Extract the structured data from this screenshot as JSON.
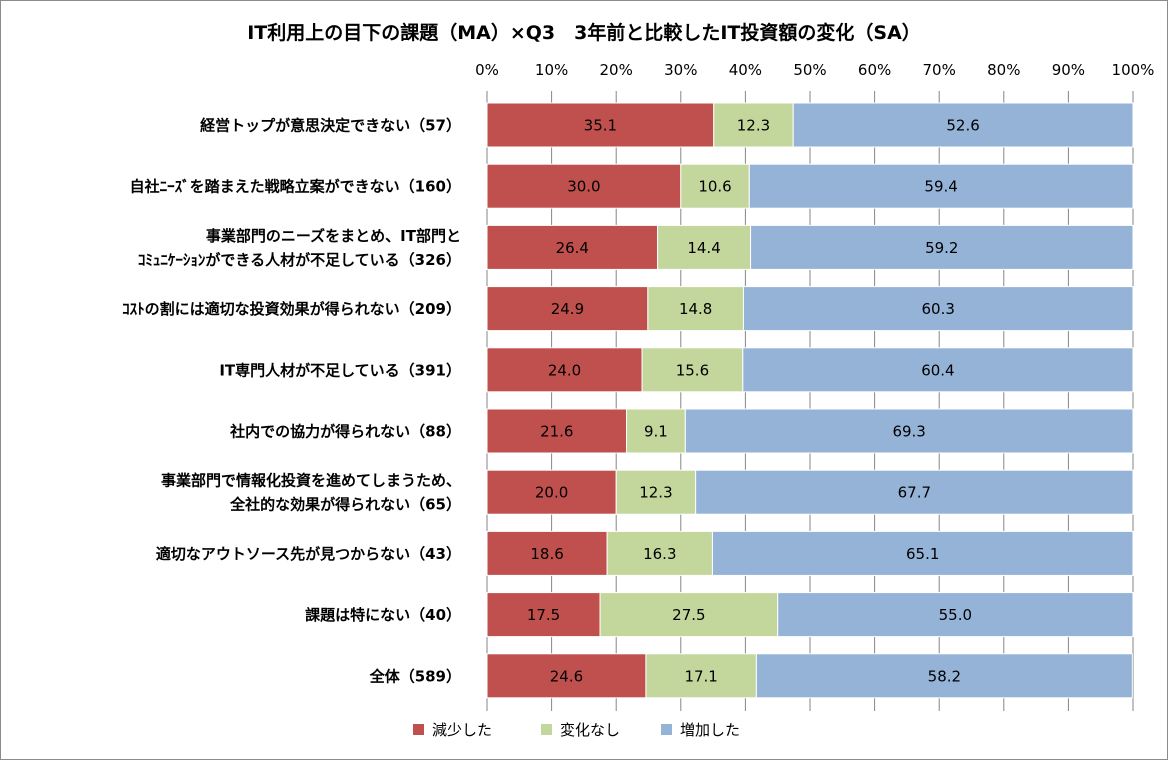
{
  "chart_data": {
    "type": "bar",
    "orientation": "horizontal",
    "stacked": true,
    "percent_stacked": true,
    "title": "IT利用上の目下の課題（MA）×Q3　3年前と比較したIT投資額の変化（SA）",
    "xlim": [
      0,
      100
    ],
    "x_ticks": [
      "0%",
      "10%",
      "20%",
      "30%",
      "40%",
      "50%",
      "60%",
      "70%",
      "80%",
      "90%",
      "100%"
    ],
    "x_axis_position": "top",
    "grid": true,
    "legend_position": "bottom",
    "categories": [
      [
        "経営トップが意思決定できない（57）"
      ],
      [
        "自社ﾆｰｽﾞを踏まえた戦略立案ができない（160）"
      ],
      [
        "事業部門のニーズをまとめ、IT部門と",
        "ｺﾐｭﾆｹｰｼｮﾝができる人材が不足している（326）"
      ],
      [
        "ｺｽﾄの割には適切な投資効果が得られない（209）"
      ],
      [
        "IT専門人材が不足している（391）"
      ],
      [
        "社内での協力が得られない（88）"
      ],
      [
        "事業部門で情報化投資を進めてしまうため、",
        "全社的な効果が得られない（65）"
      ],
      [
        "適切なアウトソース先が見つからない（43）"
      ],
      [
        "課題は特にない（40）"
      ],
      [
        "全体（589）"
      ]
    ],
    "series": [
      {
        "name": "減少した",
        "color": "#c0504d",
        "values": [
          35.1,
          30.0,
          26.4,
          24.9,
          24.0,
          21.6,
          20.0,
          18.6,
          17.5,
          24.6
        ],
        "labels": [
          "35.1",
          "30.0",
          "26.4",
          "24.9",
          "24.0",
          "21.6",
          "20.0",
          "18.6",
          "17.5",
          "24.6"
        ]
      },
      {
        "name": "変化なし",
        "color": "#c3d69b",
        "values": [
          12.3,
          10.6,
          14.4,
          14.8,
          15.6,
          9.1,
          12.3,
          16.3,
          27.5,
          17.1
        ],
        "labels": [
          "12.3",
          "10.6",
          "14.4",
          "14.8",
          "15.6",
          "9.1",
          "12.3",
          "16.3",
          "27.5",
          "17.1"
        ]
      },
      {
        "name": "増加した",
        "color": "#95b3d7",
        "values": [
          52.6,
          59.4,
          59.2,
          60.3,
          60.4,
          69.3,
          67.7,
          65.1,
          55.0,
          58.2
        ],
        "labels": [
          "52.6",
          "59.4",
          "59.2",
          "60.3",
          "60.4",
          "69.3",
          "67.7",
          "65.1",
          "55.0",
          "58.2"
        ]
      }
    ]
  }
}
